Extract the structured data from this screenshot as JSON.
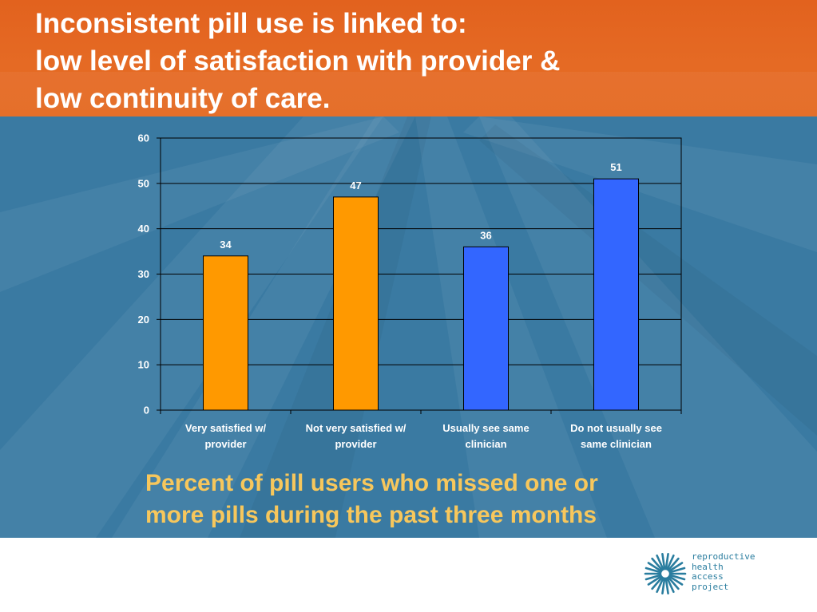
{
  "slide": {
    "title_lines": [
      "Inconsistent pill use is linked to:",
      "low level of satisfaction with provider &",
      "low continuity of care."
    ],
    "caption_lines": [
      "Percent of pill users who missed one or",
      "more pills during the past three months"
    ]
  },
  "logo": {
    "lines": [
      "reproductive",
      "health",
      "access",
      "project"
    ]
  },
  "colors": {
    "header": "#e5661f",
    "background": "#3a7aa2",
    "caption": "#f7c75c",
    "bar_orange": "#ff9900",
    "bar_blue": "#3366ff"
  },
  "chart_data": {
    "type": "bar",
    "categories": [
      "Very satisfied w/ provider",
      "Not very satisfied w/ provider",
      "Usually see same clinician",
      "Do not usually see same clinician"
    ],
    "category_label_lines": [
      [
        "Very satisfied w/",
        "provider"
      ],
      [
        "Not very satisfied w/",
        "provider"
      ],
      [
        "Usually see same",
        "clinician"
      ],
      [
        "Do not usually see",
        "same clinician"
      ]
    ],
    "values": [
      34,
      47,
      36,
      51
    ],
    "bar_colors": [
      "#ff9900",
      "#ff9900",
      "#3366ff",
      "#3366ff"
    ],
    "ylim": [
      0,
      60
    ],
    "yticks": [
      0,
      10,
      20,
      30,
      40,
      50,
      60
    ],
    "grid": true,
    "data_labels": true
  }
}
